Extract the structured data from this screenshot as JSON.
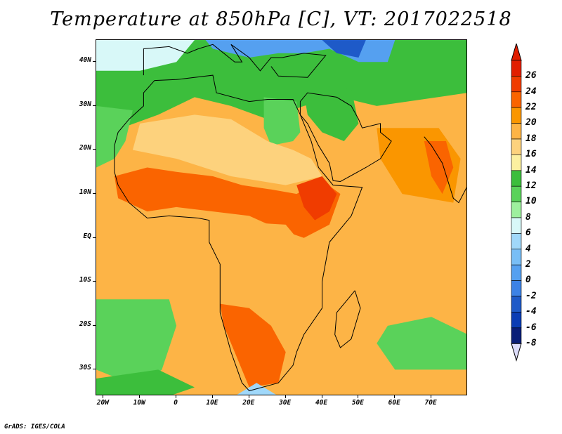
{
  "title": "Temperature at 850hPa [C], VT: 2017022518",
  "credit": "GrADS: IGES/COLA",
  "map": {
    "projection": "latlon",
    "lon_range": [
      -22,
      80
    ],
    "lat_range": [
      -36,
      45
    ],
    "lat_ticks": [
      {
        "lat": 40,
        "label": "40N"
      },
      {
        "lat": 30,
        "label": "30N"
      },
      {
        "lat": 20,
        "label": "20N"
      },
      {
        "lat": 10,
        "label": "10N"
      },
      {
        "lat": 0,
        "label": "EQ"
      },
      {
        "lat": -10,
        "label": "10S"
      },
      {
        "lat": -20,
        "label": "20S"
      },
      {
        "lat": -30,
        "label": "30S"
      }
    ],
    "lon_ticks": [
      {
        "lon": -20,
        "label": "20W"
      },
      {
        "lon": -10,
        "label": "10W"
      },
      {
        "lon": 0,
        "label": "0"
      },
      {
        "lon": 10,
        "label": "10E"
      },
      {
        "lon": 20,
        "label": "20E"
      },
      {
        "lon": 30,
        "label": "30E"
      },
      {
        "lon": 40,
        "label": "40E"
      },
      {
        "lon": 50,
        "label": "50E"
      },
      {
        "lon": 60,
        "label": "60E"
      },
      {
        "lon": 70,
        "label": "70E"
      }
    ],
    "temperature_regions": [
      {
        "name": "ocean-warm-base",
        "value": 19,
        "polygon": [
          [
            -22,
            45
          ],
          [
            80,
            45
          ],
          [
            80,
            -36
          ],
          [
            -22,
            -36
          ]
        ]
      },
      {
        "name": "north-mid-band",
        "value": 13,
        "polygon": [
          [
            -22,
            45
          ],
          [
            80,
            45
          ],
          [
            80,
            33
          ],
          [
            55,
            30
          ],
          [
            45,
            32
          ],
          [
            35,
            30
          ],
          [
            25,
            27
          ],
          [
            15,
            30
          ],
          [
            5,
            32
          ],
          [
            -5,
            28
          ],
          [
            -15,
            25
          ],
          [
            -22,
            23
          ]
        ]
      },
      {
        "name": "atlantic-north-green",
        "value": 11,
        "polygon": [
          [
            -22,
            30
          ],
          [
            -12,
            29
          ],
          [
            -14,
            22
          ],
          [
            -17,
            18
          ],
          [
            -22,
            16
          ]
        ]
      },
      {
        "name": "europe-cool",
        "value": 6,
        "polygon": [
          [
            -22,
            45
          ],
          [
            5,
            45
          ],
          [
            0,
            40
          ],
          [
            -10,
            38
          ],
          [
            -22,
            38
          ]
        ]
      },
      {
        "name": "mediterranean-cold",
        "value": 1,
        "polygon": [
          [
            8,
            45
          ],
          [
            60,
            45
          ],
          [
            58,
            40
          ],
          [
            50,
            40
          ],
          [
            42,
            43
          ],
          [
            35,
            42
          ],
          [
            28,
            42
          ],
          [
            20,
            41
          ],
          [
            10,
            43
          ]
        ]
      },
      {
        "name": "deep-cold-caspian",
        "value": -4,
        "polygon": [
          [
            40,
            45
          ],
          [
            52,
            45
          ],
          [
            50,
            41
          ],
          [
            44,
            42
          ]
        ]
      },
      {
        "name": "egypt-green",
        "value": 11,
        "polygon": [
          [
            24,
            32
          ],
          [
            33,
            31
          ],
          [
            34,
            24
          ],
          [
            32,
            22
          ],
          [
            26,
            21
          ],
          [
            24,
            25
          ]
        ]
      },
      {
        "name": "arabia-green",
        "value": 12,
        "polygon": [
          [
            35,
            33
          ],
          [
            48,
            34
          ],
          [
            50,
            26
          ],
          [
            46,
            22
          ],
          [
            40,
            24
          ],
          [
            36,
            28
          ]
        ]
      },
      {
        "name": "sahara-warm",
        "value": 17,
        "polygon": [
          [
            -10,
            26
          ],
          [
            5,
            28
          ],
          [
            15,
            27
          ],
          [
            25,
            22
          ],
          [
            32,
            20
          ],
          [
            37,
            18
          ],
          [
            40,
            14
          ],
          [
            30,
            12
          ],
          [
            15,
            14
          ],
          [
            0,
            18
          ],
          [
            -12,
            20
          ]
        ]
      },
      {
        "name": "west-africa-hot",
        "value": 23,
        "polygon": [
          [
            -17,
            14
          ],
          [
            -8,
            16
          ],
          [
            0,
            15
          ],
          [
            10,
            14
          ],
          [
            18,
            12
          ],
          [
            26,
            11
          ],
          [
            33,
            10
          ],
          [
            40,
            13
          ],
          [
            45,
            10
          ],
          [
            42,
            3
          ],
          [
            35,
            0
          ],
          [
            28,
            2
          ],
          [
            20,
            5
          ],
          [
            10,
            6
          ],
          [
            0,
            7
          ],
          [
            -8,
            6
          ],
          [
            -16,
            9
          ]
        ]
      },
      {
        "name": "horn-hot",
        "value": 24,
        "polygon": [
          [
            33,
            12
          ],
          [
            40,
            14
          ],
          [
            44,
            10
          ],
          [
            42,
            6
          ],
          [
            38,
            4
          ],
          [
            35,
            7
          ]
        ]
      },
      {
        "name": "arabian-sea-warm",
        "value": 20,
        "polygon": [
          [
            55,
            25
          ],
          [
            72,
            25
          ],
          [
            78,
            18
          ],
          [
            76,
            8
          ],
          [
            62,
            10
          ],
          [
            56,
            18
          ]
        ]
      },
      {
        "name": "india-hot",
        "value": 22,
        "polygon": [
          [
            68,
            22
          ],
          [
            74,
            22
          ],
          [
            76,
            16
          ],
          [
            73,
            10
          ],
          [
            70,
            14
          ]
        ]
      },
      {
        "name": "congo-warm",
        "value": 19,
        "polygon": [
          [
            10,
            4
          ],
          [
            30,
            3
          ],
          [
            36,
            -3
          ],
          [
            30,
            -10
          ],
          [
            18,
            -10
          ],
          [
            12,
            -5
          ]
        ]
      },
      {
        "name": "southern-africa-hot",
        "value": 23,
        "polygon": [
          [
            12,
            -15
          ],
          [
            20,
            -16
          ],
          [
            26,
            -20
          ],
          [
            30,
            -26
          ],
          [
            28,
            -33
          ],
          [
            20,
            -34
          ],
          [
            16,
            -26
          ],
          [
            13,
            -20
          ]
        ]
      },
      {
        "name": "south-atlantic-green",
        "value": 11,
        "polygon": [
          [
            -22,
            -14
          ],
          [
            -2,
            -14
          ],
          [
            0,
            -20
          ],
          [
            -4,
            -30
          ],
          [
            -10,
            -34
          ],
          [
            -22,
            -30
          ]
        ]
      },
      {
        "name": "south-atlantic-cool",
        "value": 13,
        "polygon": [
          [
            -22,
            -32
          ],
          [
            -5,
            -30
          ],
          [
            5,
            -34
          ],
          [
            -2,
            -36
          ],
          [
            -22,
            -36
          ]
        ]
      },
      {
        "name": "indian-ocean-green",
        "value": 11,
        "polygon": [
          [
            58,
            -20
          ],
          [
            70,
            -18
          ],
          [
            80,
            -22
          ],
          [
            80,
            -30
          ],
          [
            60,
            -30
          ],
          [
            55,
            -24
          ]
        ]
      },
      {
        "name": "southern-cold-sea",
        "value": 5,
        "polygon": [
          [
            16,
            -36
          ],
          [
            22,
            -33
          ],
          [
            28,
            -36
          ]
        ]
      }
    ],
    "coastlines": [
      {
        "name": "africa-coast",
        "points": [
          [
            -17,
            21
          ],
          [
            -16,
            24
          ],
          [
            -13,
            27
          ],
          [
            -9,
            30
          ],
          [
            -9,
            33
          ],
          [
            -6,
            35.8
          ],
          [
            0,
            36
          ],
          [
            10,
            37
          ],
          [
            11,
            33
          ],
          [
            20,
            31
          ],
          [
            25,
            31.5
          ],
          [
            32,
            31.5
          ],
          [
            34,
            28
          ],
          [
            37,
            22
          ],
          [
            39,
            16
          ],
          [
            43,
            12
          ],
          [
            51,
            11.5
          ],
          [
            48,
            5
          ],
          [
            42,
            -1
          ],
          [
            40,
            -10
          ],
          [
            40,
            -16
          ],
          [
            35,
            -22
          ],
          [
            33,
            -26
          ],
          [
            32,
            -29
          ],
          [
            28,
            -33
          ],
          [
            20,
            -34.8
          ],
          [
            18,
            -33
          ],
          [
            15,
            -26
          ],
          [
            12,
            -17
          ],
          [
            12,
            -6
          ],
          [
            9,
            -1
          ],
          [
            9,
            4
          ],
          [
            6,
            4.5
          ],
          [
            -2,
            5
          ],
          [
            -8,
            4.5
          ],
          [
            -13,
            8
          ],
          [
            -16,
            12
          ],
          [
            -17,
            15
          ],
          [
            -17,
            21
          ]
        ]
      },
      {
        "name": "madagascar-coast",
        "points": [
          [
            49,
            -12
          ],
          [
            50.5,
            -16
          ],
          [
            48,
            -23
          ],
          [
            45,
            -25
          ],
          [
            43.5,
            -22
          ],
          [
            44,
            -17
          ],
          [
            47,
            -14
          ],
          [
            49,
            -12
          ]
        ]
      },
      {
        "name": "arabia-coast",
        "points": [
          [
            34,
            28
          ],
          [
            36,
            26
          ],
          [
            39,
            21
          ],
          [
            42,
            17
          ],
          [
            43,
            13
          ],
          [
            45,
            12.8
          ],
          [
            52,
            16
          ],
          [
            56,
            18
          ],
          [
            59,
            22
          ],
          [
            56,
            24
          ],
          [
            56,
            26
          ],
          [
            51,
            25
          ],
          [
            50,
            27
          ],
          [
            48,
            30
          ],
          [
            44,
            32
          ],
          [
            36,
            33
          ],
          [
            34,
            31
          ],
          [
            34,
            28
          ]
        ]
      },
      {
        "name": "india-coast",
        "points": [
          [
            68,
            23
          ],
          [
            70,
            21
          ],
          [
            73,
            17
          ],
          [
            76,
            9
          ],
          [
            77.5,
            8
          ],
          [
            80,
            12
          ]
        ]
      },
      {
        "name": "europe-coast",
        "points": [
          [
            -9,
            37
          ],
          [
            -9,
            43
          ],
          [
            -2,
            43.5
          ],
          [
            3,
            42
          ],
          [
            6,
            43
          ],
          [
            10,
            44
          ],
          [
            13,
            42
          ],
          [
            16,
            40
          ],
          [
            18,
            40
          ],
          [
            15,
            44
          ],
          [
            20,
            41
          ],
          [
            23,
            38
          ],
          [
            26,
            41
          ],
          [
            29,
            41
          ],
          [
            35,
            42
          ],
          [
            41,
            41.5
          ],
          [
            36,
            36.5
          ],
          [
            28,
            36.8
          ],
          [
            26,
            39
          ]
        ]
      }
    ]
  },
  "colorbar": {
    "labels": [
      "26",
      "24",
      "22",
      "20",
      "18",
      "16",
      "14",
      "12",
      "10",
      "8",
      "6",
      "4",
      "2",
      "0",
      "-2",
      "-4",
      "-6",
      "-8"
    ],
    "colors": [
      "#e11e00",
      "#f03c00",
      "#fa6400",
      "#fa9600",
      "#fdb446",
      "#fdd27d",
      "#fcf0a0",
      "#3cbe3c",
      "#5ad25a",
      "#9ef09e",
      "#d8f8f8",
      "#a0d8fa",
      "#78bef6",
      "#55a0f0",
      "#3c82e6",
      "#1e5ac8",
      "#0a3cb4",
      "#0a1e78"
    ],
    "top_arrow_color": "#e11e00",
    "bottom_arrow_color": "#dcdcfa"
  }
}
